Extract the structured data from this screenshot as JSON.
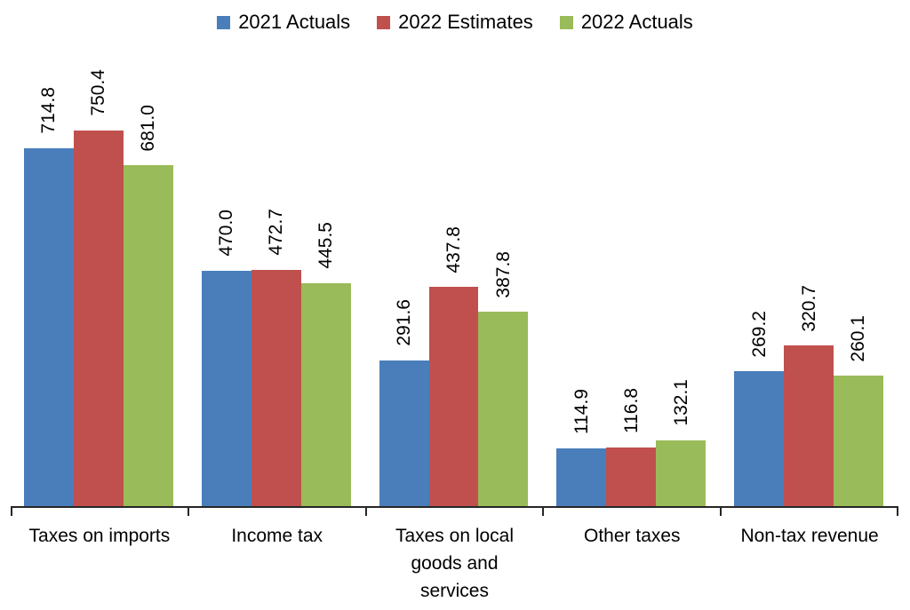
{
  "chart_data": {
    "type": "bar",
    "title": "",
    "categories": [
      "Taxes on imports",
      "Income tax",
      "Taxes on local goods and services",
      "Other taxes",
      "Non-tax revenue"
    ],
    "category_display": [
      "Taxes on imports",
      "Income tax",
      "Taxes on local\ngoods and\nservices",
      "Other taxes",
      "Non-tax revenue"
    ],
    "series": [
      {
        "name": "2021 Actuals",
        "color": "#4A7EBB",
        "values": [
          714.8,
          470.0,
          291.6,
          114.9,
          269.2
        ]
      },
      {
        "name": "2022 Estimates",
        "color": "#C0504D",
        "values": [
          750.4,
          472.7,
          437.8,
          116.8,
          320.7
        ]
      },
      {
        "name": "2022 Actuals",
        "color": "#9ABB59",
        "values": [
          681.0,
          445.5,
          387.8,
          132.1,
          260.1
        ]
      }
    ],
    "value_labels": true,
    "value_label_format": "1-decimal",
    "value_label_rotation": "vertical",
    "xlabel": "",
    "ylabel": "",
    "ylim": [
      0,
      800
    ],
    "grid": false,
    "legend_position": "top",
    "axis_color": "#262626",
    "text_color": "#000000",
    "background_color": "#ffffff"
  }
}
